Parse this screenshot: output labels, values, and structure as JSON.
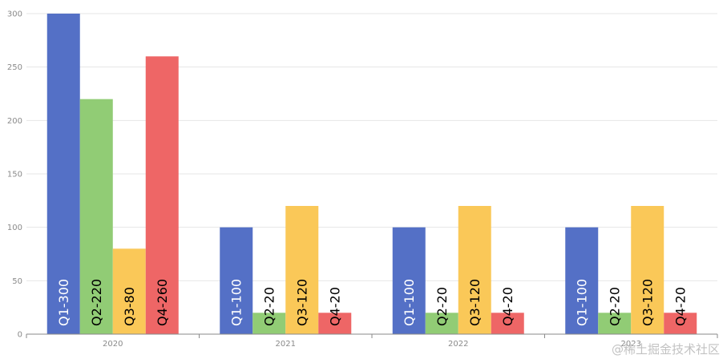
{
  "chart_data": {
    "type": "bar",
    "categories": [
      "2020",
      "2021",
      "2022",
      "2023"
    ],
    "series": [
      {
        "name": "Q1",
        "values": [
          300,
          100,
          100,
          100
        ],
        "color": "#5470c6",
        "label_color": "#ffffff"
      },
      {
        "name": "Q2",
        "values": [
          220,
          20,
          20,
          20
        ],
        "color": "#91cc75",
        "label_color": "#000000"
      },
      {
        "name": "Q3",
        "values": [
          80,
          120,
          120,
          120
        ],
        "color": "#fac858",
        "label_color": "#000000"
      },
      {
        "name": "Q4",
        "values": [
          260,
          20,
          20,
          20
        ],
        "color": "#ee6666",
        "label_color": "#000000"
      }
    ],
    "data_labels": [
      [
        "Q1-300",
        "Q1-100",
        "Q1-100",
        "Q1-100"
      ],
      [
        "Q2-220",
        "Q2-20",
        "Q2-20",
        "Q2-20"
      ],
      [
        "Q3-80",
        "Q3-120",
        "Q3-120",
        "Q3-120"
      ],
      [
        "Q4-260",
        "Q4-20",
        "Q4-20",
        "Q4-20"
      ]
    ],
    "y_ticks": [
      0,
      50,
      100,
      150,
      200,
      250,
      300
    ],
    "ylim": [
      0,
      300
    ],
    "grid": true,
    "legend": false
  },
  "watermark": "@稀土掘金技术社区",
  "colors": {
    "grid": "#e6e6e6",
    "axis": "#8a8a8a",
    "tick_text": "#8a8a8a"
  }
}
